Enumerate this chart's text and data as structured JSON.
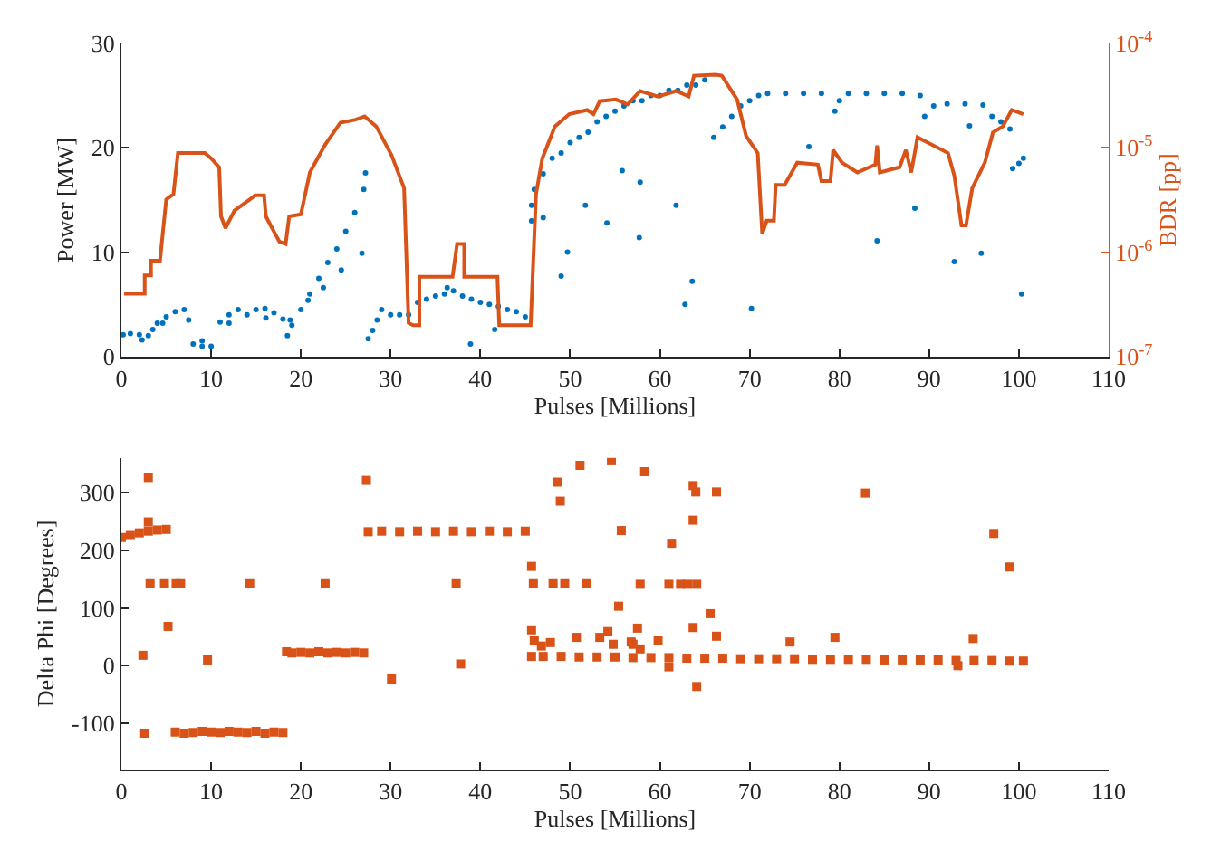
{
  "chart_data": [
    {
      "type": "scatter",
      "xlabel": "Pulses [Millions]",
      "ylabel": "Power [MW]",
      "y2label": "BDR [pp]",
      "xlim": [
        0,
        110
      ],
      "xticks": [
        0,
        10,
        20,
        30,
        40,
        50,
        60,
        70,
        80,
        90,
        100,
        110
      ],
      "ylim": [
        0,
        30
      ],
      "yticks": [
        0,
        10,
        20,
        30
      ],
      "log": "y2",
      "y2lim": [
        1e-07,
        0.0001
      ],
      "y2ticks": [
        {
          "value": 1e-07,
          "label": "10$^{-7}$"
        },
        {
          "value": 1e-06,
          "label": "10$^{-6}$"
        },
        {
          "value": 1e-05,
          "label": "10$^{-5}$"
        },
        {
          "value": 0.0001,
          "label": "10$^{-4}$"
        }
      ],
      "series": [
        {
          "marker": "circle",
          "color": "#0072bd",
          "x": [
            0.2,
            1,
            2,
            3,
            3.5,
            4,
            5,
            6,
            7,
            7.5,
            8,
            9,
            10,
            11,
            12,
            13,
            14,
            15,
            16,
            17,
            18,
            18.5,
            19,
            20,
            21,
            22,
            23,
            24,
            25,
            26,
            27,
            28,
            28.5,
            29,
            30,
            31,
            32,
            33,
            34,
            35,
            36,
            37,
            38,
            39,
            40,
            41,
            42,
            43,
            44,
            45,
            45.7,
            46,
            47,
            48,
            49,
            50,
            51,
            52,
            53,
            54,
            55,
            56,
            57,
            58,
            59,
            60,
            61,
            62,
            63,
            64,
            65,
            66,
            67,
            68,
            69,
            70,
            71,
            72,
            74,
            76,
            78,
            79.5,
            80,
            81,
            83,
            85,
            87,
            89,
            89.5,
            90.5,
            92,
            94,
            96,
            97,
            98,
            99,
            99.3,
            100,
            100.5,
            2.3,
            4.6,
            9.0,
            12.0,
            16.1,
            18.8,
            20.8,
            22.5,
            24.5,
            26.8,
            27.2,
            27.5,
            36.3,
            38.9,
            41.6,
            45.7,
            47.0,
            49.0,
            49.7,
            51.7,
            54.1,
            55.8,
            57.8,
            57.7,
            61.8,
            62.8,
            63.6,
            70.2,
            76.6,
            84.2,
            88.4,
            92.8,
            95.8,
            94.5,
            100.3
          ],
          "values": [
            2.1,
            2.2,
            2.1,
            2.0,
            2.6,
            3.2,
            3.8,
            4.3,
            4.5,
            3.5,
            1.2,
            1.0,
            1.0,
            3.3,
            4.0,
            4.5,
            4.0,
            4.5,
            4.6,
            4.2,
            3.6,
            2.0,
            3.0,
            4.5,
            6.0,
            7.5,
            9.0,
            10.3,
            12.0,
            13.8,
            16.0,
            2.5,
            3.5,
            4.5,
            4.0,
            4.0,
            4.0,
            5.2,
            5.5,
            5.8,
            6.0,
            6.3,
            5.8,
            5.5,
            5.2,
            5.0,
            4.8,
            4.5,
            4.3,
            3.8,
            13,
            16,
            17.5,
            19,
            19.5,
            20.5,
            21,
            21.5,
            22.5,
            23,
            23.5,
            24,
            24.5,
            24.5,
            25,
            25,
            25.5,
            25.5,
            26,
            26,
            26.5,
            21,
            22,
            23,
            24,
            24.5,
            25,
            25.2,
            25.2,
            25.2,
            25.2,
            23.5,
            24.5,
            25.2,
            25.2,
            25.2,
            25.2,
            25.0,
            23,
            24,
            24.2,
            24.2,
            24.1,
            23,
            22.5,
            21.8,
            18,
            18.5,
            19,
            1.6,
            3.2,
            1.5,
            3.2,
            3.7,
            3.5,
            5.4,
            6.6,
            8.3,
            9.9,
            17.6,
            1.7,
            6.6,
            1.2,
            2.6,
            14.5,
            13.3,
            7.7,
            10.0,
            14.5,
            12.8,
            17.8,
            16.7,
            11.4,
            14.5,
            5.0,
            7.2,
            4.6,
            20.1,
            11.1,
            14.2,
            9.1,
            9.9,
            22.1,
            6.0
          ]
        },
        {
          "type": "line",
          "axis": "y2",
          "marker": "none",
          "line_style": "solid",
          "color": "#d95319",
          "x": [
            0.3,
            2.6,
            2.6,
            3.3,
            3.3,
            4.3,
            5.0,
            5.8,
            6.3,
            9.3,
            10.0,
            10.9,
            11.1,
            11.6,
            12.6,
            14.3,
            14.9,
            15.9,
            16.1,
            17.6,
            18.3,
            18.7,
            20.0,
            21.0,
            22.7,
            24.4,
            26.1,
            27.1,
            28.4,
            30.1,
            31.5,
            32.0,
            32.5,
            33.2,
            33.2,
            36.9,
            37.4,
            38.2,
            38.2,
            41.9,
            42.1,
            45.6,
            46.2,
            46.9,
            48.3,
            49.9,
            51.9,
            52.6,
            53.3,
            55.1,
            56.4,
            57.8,
            59.8,
            61.8,
            63.2,
            63.8,
            66.2,
            66.9,
            68.6,
            69.6,
            70.9,
            71.4,
            71.9,
            72.7,
            72.9,
            73.9,
            75.3,
            77.6,
            78.0,
            79.0,
            79.3,
            80.3,
            82.0,
            84.0,
            84.2,
            84.5,
            86.7,
            87.4,
            88.0,
            88.7,
            92.1,
            92.8,
            93.6,
            94.1,
            94.8,
            96.2,
            97.1,
            98.2,
            99.2,
            100.5
          ],
          "values": [
            4e-07,
            4e-07,
            6e-07,
            6e-07,
            8.3e-07,
            8.3e-07,
            3.2e-06,
            3.6e-06,
            8.9e-06,
            8.9e-06,
            7.9e-06,
            6.5e-06,
            2.2e-06,
            1.7e-06,
            2.5e-06,
            3.2e-06,
            3.5e-06,
            3.5e-06,
            2.2e-06,
            1.26e-06,
            1.2e-06,
            2.2e-06,
            2.3e-06,
            5.8e-06,
            1.07e-05,
            1.74e-05,
            1.86e-05,
            2e-05,
            1.6e-05,
            8.5e-06,
            4.1e-06,
            2.1e-07,
            2e-07,
            2e-07,
            5.8e-07,
            5.8e-07,
            1.2e-06,
            1.2e-06,
            5.8e-07,
            5.8e-07,
            2e-07,
            2e-07,
            3.6e-06,
            7.9e-06,
            1.6e-05,
            2.1e-05,
            2.3e-05,
            2.1e-05,
            2.8e-05,
            2.9e-05,
            2.6e-05,
            3.5e-05,
            3.1e-05,
            3.5e-05,
            3.1e-05,
            4.9e-05,
            5e-05,
            4.9e-05,
            2.9e-05,
            1.3e-05,
            8.9e-06,
            1.5e-06,
            2e-06,
            2e-06,
            4.4e-06,
            4.4e-06,
            7.2e-06,
            6.9e-06,
            4.8e-06,
            4.8e-06,
            9.5e-06,
            7.2e-06,
            5.8e-06,
            6.9e-06,
            1.05e-05,
            5.8e-06,
            6.5e-06,
            9.5e-06,
            5.8e-06,
            1.26e-05,
            8.9e-06,
            5.4e-06,
            1.8e-06,
            1.8e-06,
            4.1e-06,
            7.2e-06,
            1.4e-05,
            1.6e-05,
            2.3e-05,
            2.1e-05
          ]
        }
      ]
    },
    {
      "type": "scatter",
      "xlabel": "Pulses [Millions]",
      "ylabel": "Delta Phi [Degrees]",
      "xlim": [
        0,
        110
      ],
      "xticks": [
        0,
        10,
        20,
        30,
        40,
        50,
        60,
        70,
        80,
        90,
        100,
        110
      ],
      "ylim": [
        -180,
        360
      ],
      "yticks": [
        -100,
        0,
        100,
        200,
        300
      ],
      "series": [
        {
          "marker": "square",
          "color": "#d95319",
          "x": [
            0,
            1,
            2,
            3,
            4,
            5,
            6,
            7,
            8,
            9,
            10,
            11,
            12,
            13,
            14,
            15,
            16,
            17,
            18,
            18.4,
            19,
            20,
            21,
            22,
            23,
            24,
            25,
            26,
            27,
            27.5,
            29,
            31,
            33,
            35,
            37,
            39,
            41,
            43,
            45,
            45.7,
            47,
            49,
            51,
            53,
            55,
            57,
            59,
            61,
            63,
            65,
            67,
            69,
            71,
            73,
            75,
            77,
            79,
            81,
            83,
            85,
            87,
            89,
            91,
            93,
            95,
            97,
            99,
            100.5,
            3.0,
            3.0,
            2.4,
            2.6,
            3.2,
            4.8,
            6.1,
            6.6,
            5.2,
            9.6,
            14.3,
            22.7,
            27.3,
            30.1,
            37.3,
            37.8,
            45.7,
            45.9,
            45.7,
            46.0,
            46.8,
            47.8,
            48.1,
            48.6,
            48.9,
            49.4,
            50.7,
            51.1,
            51.8,
            53.3,
            54.2,
            54.6,
            55.7,
            55.4,
            54.8,
            56.8,
            58.3,
            63.7,
            64.0,
            66.3,
            63.7,
            61.3,
            57.8,
            61.0,
            62.3,
            63.1,
            64.1,
            57.5,
            65.6,
            63.7,
            66.3,
            59.8,
            57.0,
            57.8,
            61.0,
            64.1,
            74.5,
            79.5,
            82.9,
            93.2,
            94.9,
            97.2,
            98.9
          ],
          "values": [
            222,
            227,
            230,
            233,
            235,
            236,
            -115,
            -117,
            -116,
            -114,
            -115,
            -116,
            -114,
            -115,
            -116,
            -114,
            -117,
            -115,
            -116,
            24,
            22,
            23,
            22,
            24,
            22,
            23,
            22,
            23,
            22,
            232,
            233,
            232,
            233,
            232,
            233,
            232,
            233,
            232,
            233,
            16,
            16,
            16,
            15,
            15,
            15,
            14,
            14,
            14,
            13,
            13,
            13,
            12,
            12,
            12,
            12,
            11,
            11,
            11,
            11,
            10,
            10,
            10,
            10,
            9,
            9,
            9,
            8,
            8,
            326,
            249,
            18,
            -117,
            142,
            142,
            142,
            142,
            68,
            10,
            142,
            142,
            321,
            -23,
            142,
            3,
            172,
            142,
            62,
            44,
            34,
            40,
            142,
            318,
            285,
            142,
            49,
            347,
            142,
            49,
            59,
            355,
            234,
            103,
            37,
            41,
            336,
            312,
            301,
            301,
            252,
            212,
            141,
            141,
            141,
            141,
            141,
            65,
            90,
            66,
            51,
            44,
            37,
            29,
            -2,
            -36,
            41,
            49,
            299,
            0,
            47,
            229,
            171
          ]
        }
      ]
    }
  ]
}
